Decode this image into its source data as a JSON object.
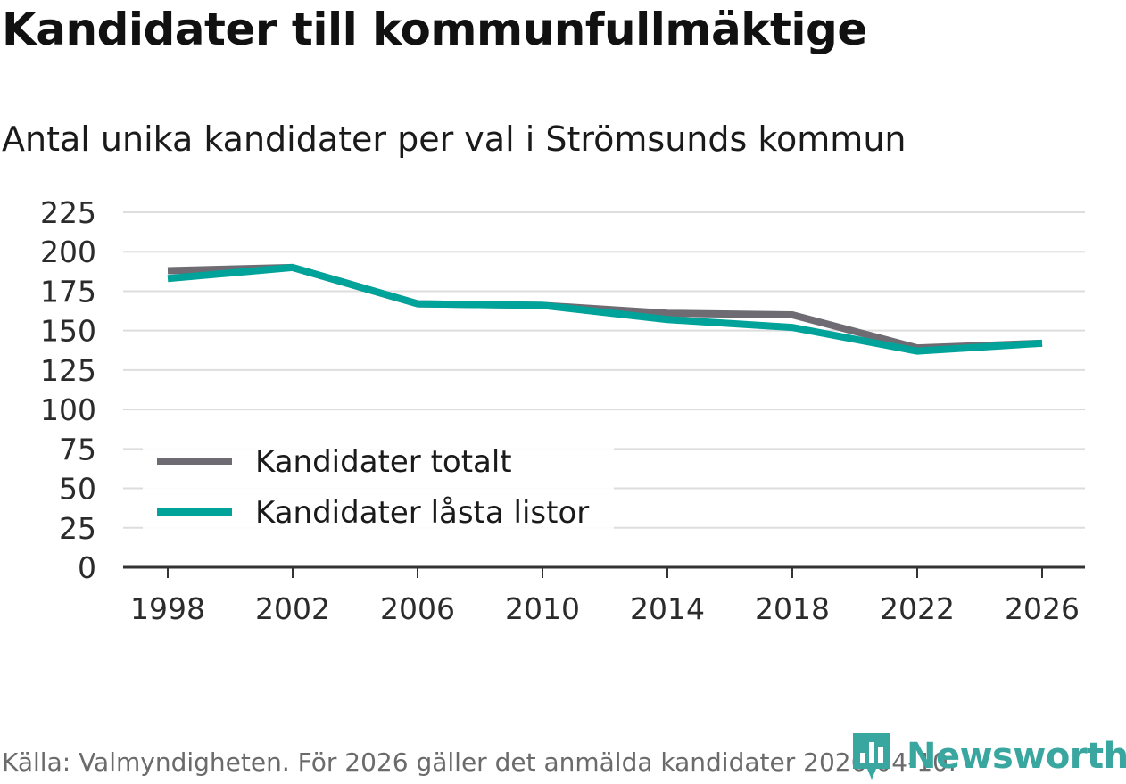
{
  "title": "Kandidater till kommunfullmäktige",
  "subtitle": "Antal unika kandidater per val i Strömsunds kommun",
  "footer": "Källa: Valmyndigheten. För 2026 gäller det anmälda kandidater 2026-04-10.",
  "brand": {
    "name": "Newsworthy",
    "icon": "newsworthy-logo-icon",
    "color": "#3aa6a0"
  },
  "chart_data": {
    "type": "line",
    "x": [
      1998,
      2002,
      2006,
      2010,
      2014,
      2018,
      2022,
      2026
    ],
    "xticks": [
      "1998",
      "2002",
      "2006",
      "2010",
      "2014",
      "2018",
      "2022",
      "2026"
    ],
    "yticks": [
      "0",
      "25",
      "50",
      "75",
      "100",
      "125",
      "150",
      "175",
      "200",
      "225"
    ],
    "ylim": [
      0,
      225
    ],
    "grid": true,
    "legend_position": "bottom-left",
    "series": [
      {
        "name": "Kandidater totalt",
        "color": "#6e6c72",
        "values": [
          188,
          190,
          167,
          166,
          161,
          160,
          139,
          142
        ]
      },
      {
        "name": "Kandidater låsta listor",
        "color": "#00a39a",
        "values": [
          183,
          190,
          167,
          166,
          157,
          152,
          137,
          142
        ]
      }
    ]
  }
}
